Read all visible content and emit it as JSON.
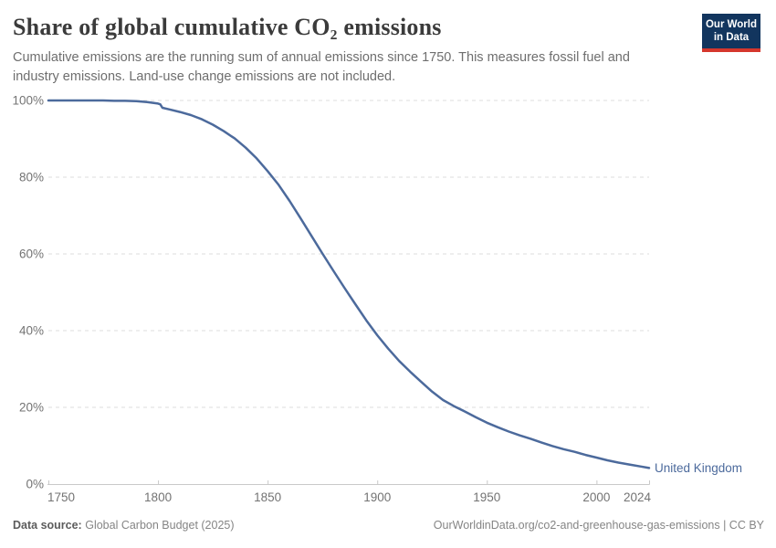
{
  "header": {
    "title": "Share of global cumulative CO₂ emissions",
    "subtitle": "Cumulative emissions are the running sum of annual emissions since 1750. This measures fossil fuel and industry emissions. Land-use change emissions are not included.",
    "logo": {
      "line1": "Our World",
      "line2": "in Data"
    }
  },
  "footer": {
    "source_label": "Data source:",
    "source_value": "Global Carbon Budget (2025)",
    "credit": "OurWorldinData.org/co2-and-greenhouse-gas-emissions | CC BY"
  },
  "colors": {
    "title": "#3b3b3b",
    "subtitle": "#6e6e6e",
    "grid": "#dcdcdc",
    "axis": "#c9c9c9",
    "tick_text": "#737373",
    "footer": "#858585",
    "footer_label": "#5c5c5c",
    "logo_bg": "#12355e",
    "logo_stripe": "#d5372d",
    "logo_text": "#ffffff",
    "series_line": "#4c6a9c"
  },
  "chart_data": {
    "type": "line",
    "title": "Share of global cumulative CO₂ emissions",
    "xlabel": "",
    "ylabel": "",
    "grid": "horizontal-dashed",
    "legend_position": "end-of-line-label",
    "xlim": [
      1750,
      2024
    ],
    "ylim": [
      0,
      100
    ],
    "x_ticks": [
      {
        "value": 1750,
        "label": "1750"
      },
      {
        "value": 1800,
        "label": "1800"
      },
      {
        "value": 1850,
        "label": "1850"
      },
      {
        "value": 1900,
        "label": "1900"
      },
      {
        "value": 1950,
        "label": "1950"
      },
      {
        "value": 2000,
        "label": "2000"
      },
      {
        "value": 2024,
        "label": "2024"
      }
    ],
    "y_ticks": [
      {
        "value": 0,
        "label": "0%"
      },
      {
        "value": 20,
        "label": "20%"
      },
      {
        "value": 40,
        "label": "40%"
      },
      {
        "value": 60,
        "label": "60%"
      },
      {
        "value": 80,
        "label": "80%"
      },
      {
        "value": 100,
        "label": "100%"
      }
    ],
    "series": [
      {
        "name": "United Kingdom",
        "color": "#4c6a9c",
        "points": [
          [
            1750,
            100
          ],
          [
            1755,
            100
          ],
          [
            1760,
            100
          ],
          [
            1765,
            100
          ],
          [
            1770,
            100
          ],
          [
            1775,
            100
          ],
          [
            1780,
            99.9
          ],
          [
            1785,
            99.9
          ],
          [
            1790,
            99.8
          ],
          [
            1795,
            99.6
          ],
          [
            1800,
            99.2
          ],
          [
            1801,
            99.0
          ],
          [
            1802,
            98.1
          ],
          [
            1805,
            97.7
          ],
          [
            1810,
            97.0
          ],
          [
            1815,
            96.2
          ],
          [
            1820,
            95.1
          ],
          [
            1825,
            93.7
          ],
          [
            1830,
            92.0
          ],
          [
            1835,
            90.1
          ],
          [
            1840,
            87.7
          ],
          [
            1845,
            84.9
          ],
          [
            1850,
            81.6
          ],
          [
            1855,
            78.0
          ],
          [
            1860,
            73.8
          ],
          [
            1865,
            69.3
          ],
          [
            1870,
            64.7
          ],
          [
            1875,
            60.1
          ],
          [
            1880,
            55.6
          ],
          [
            1885,
            51.2
          ],
          [
            1890,
            46.9
          ],
          [
            1895,
            42.7
          ],
          [
            1900,
            38.8
          ],
          [
            1905,
            35.3
          ],
          [
            1910,
            32.1
          ],
          [
            1915,
            29.3
          ],
          [
            1920,
            26.7
          ],
          [
            1925,
            24.1
          ],
          [
            1930,
            21.9
          ],
          [
            1935,
            20.3
          ],
          [
            1940,
            18.9
          ],
          [
            1945,
            17.4
          ],
          [
            1950,
            16.0
          ],
          [
            1955,
            14.8
          ],
          [
            1960,
            13.7
          ],
          [
            1965,
            12.7
          ],
          [
            1970,
            11.8
          ],
          [
            1975,
            10.8
          ],
          [
            1980,
            9.9
          ],
          [
            1985,
            9.1
          ],
          [
            1990,
            8.4
          ],
          [
            1995,
            7.6
          ],
          [
            2000,
            6.9
          ],
          [
            2005,
            6.2
          ],
          [
            2010,
            5.6
          ],
          [
            2015,
            5.1
          ],
          [
            2020,
            4.6
          ],
          [
            2024,
            4.2
          ]
        ]
      }
    ]
  }
}
